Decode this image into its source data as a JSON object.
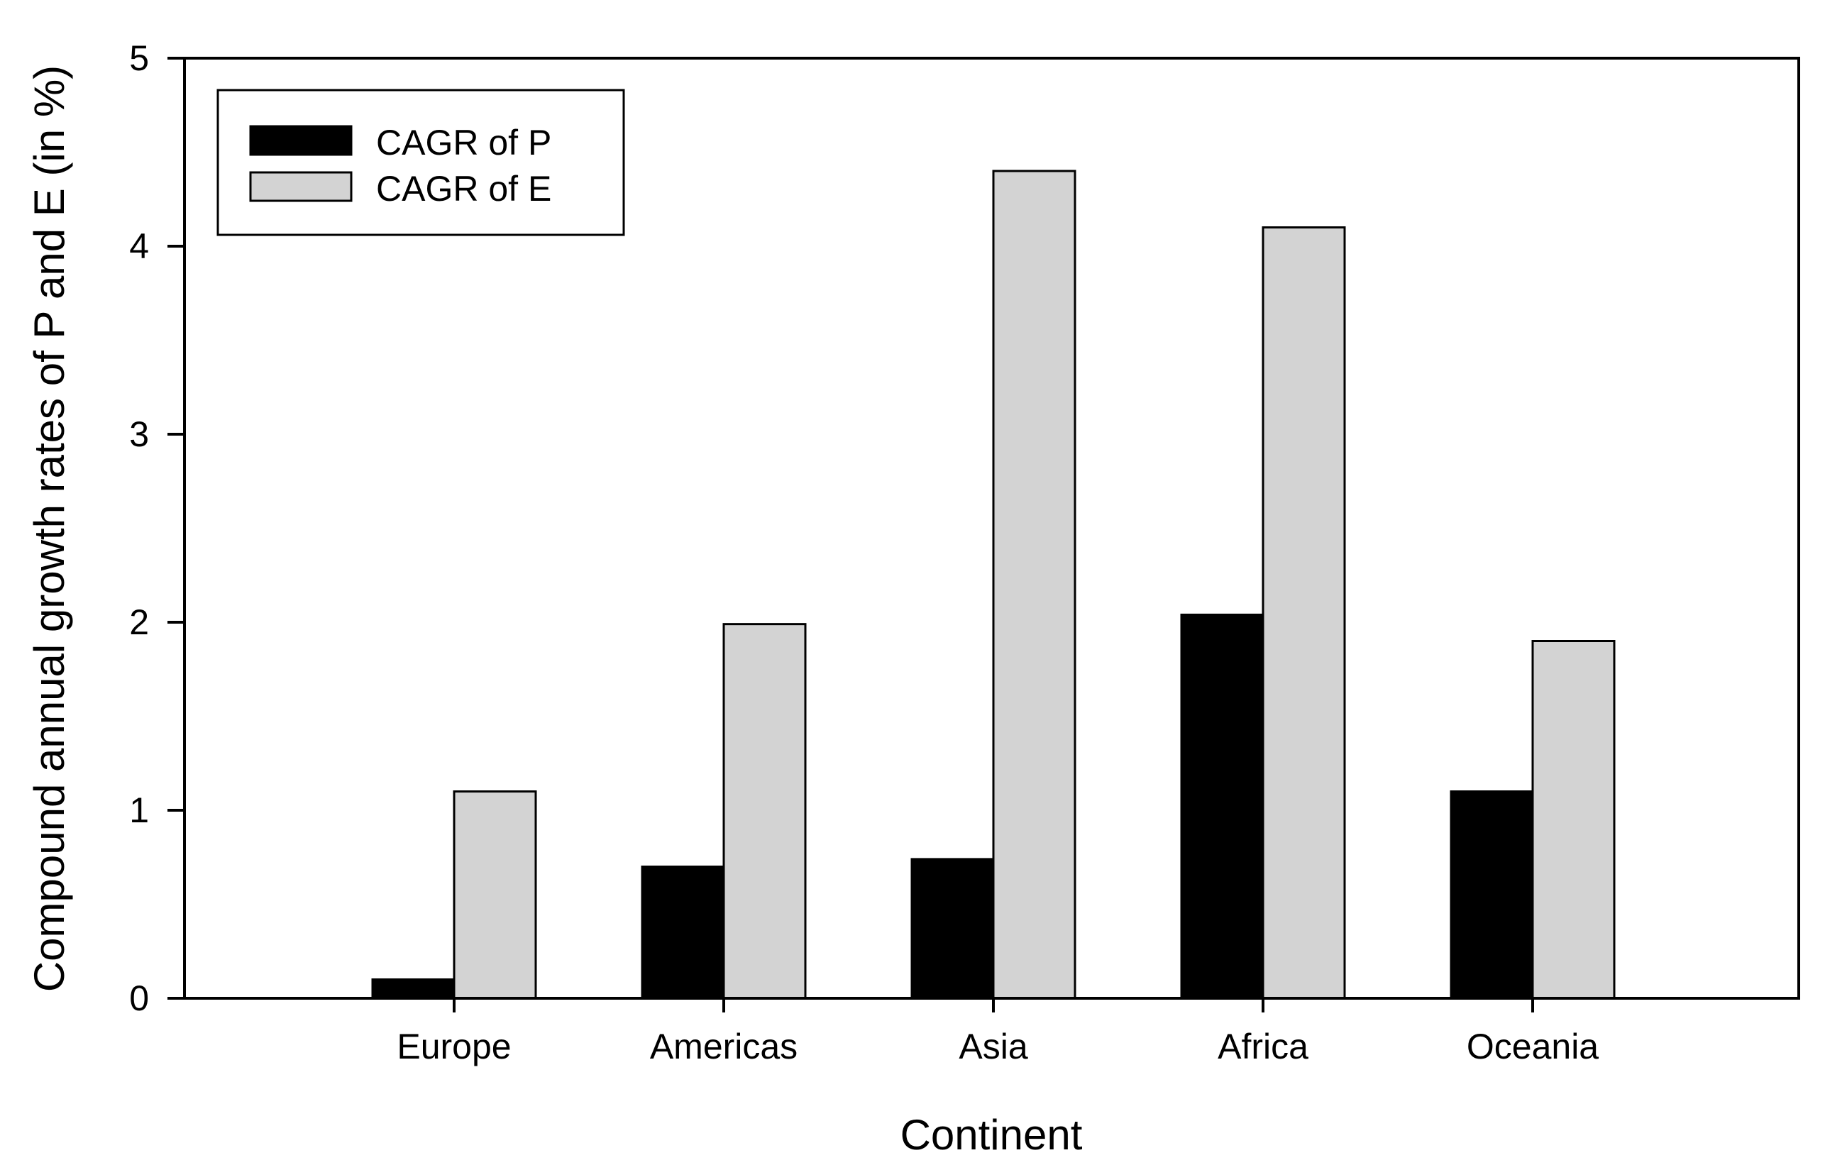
{
  "chart_data": {
    "type": "bar",
    "title": "",
    "xlabel": "Continent",
    "ylabel": "Compound annual growth rates of P and E (in %)",
    "categories": [
      "Europe",
      "Americas",
      "Asia",
      "Africa",
      "Oceania"
    ],
    "series": [
      {
        "name": "CAGR of P",
        "color": "#000000",
        "values": [
          0.1,
          0.7,
          0.74,
          2.04,
          1.1
        ]
      },
      {
        "name": "CAGR of E",
        "color": "#d3d3d3",
        "values": [
          1.1,
          1.99,
          4.4,
          4.1,
          1.9
        ]
      }
    ],
    "ylim": [
      0,
      5
    ],
    "yticks": [
      "0",
      "1",
      "2",
      "3",
      "4",
      "5"
    ],
    "grid": false,
    "legend_position": "top-left"
  }
}
